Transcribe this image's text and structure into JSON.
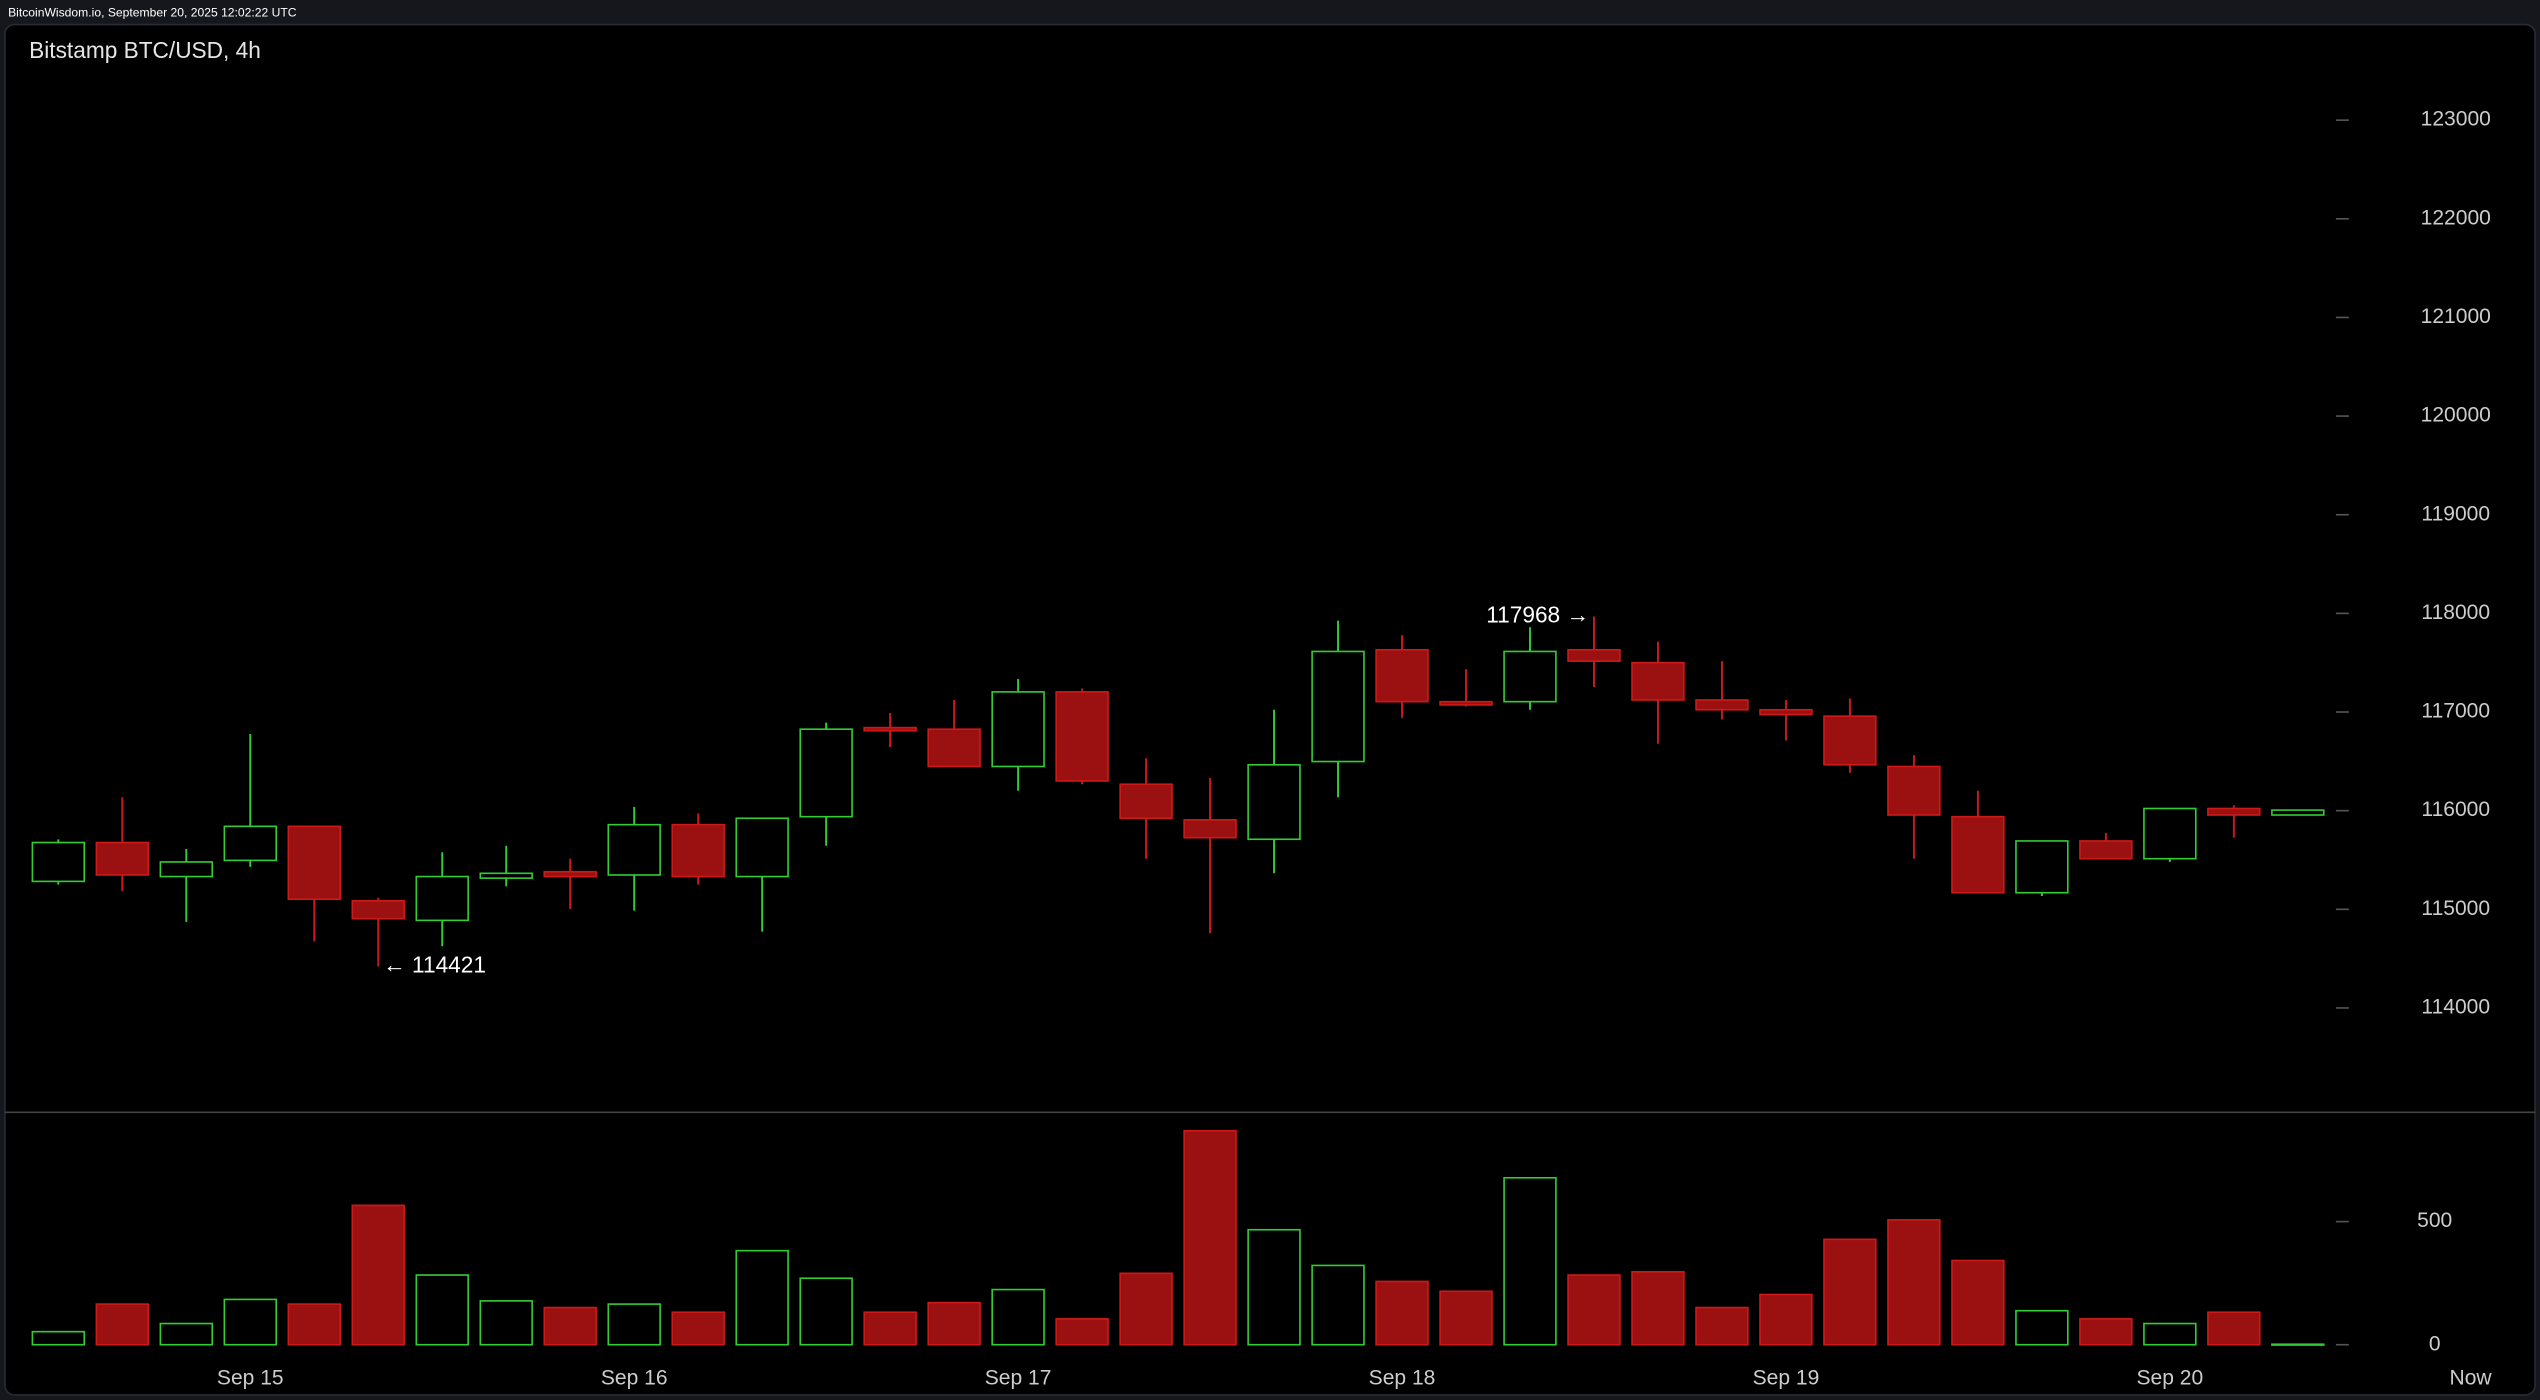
{
  "chart_data": {
    "type": "candlestick",
    "source": "BitcoinWisdom.io, September 20, 2025 12:02:22 UTC",
    "title": "Bitstamp BTC/USD, 4h",
    "categories": [
      null,
      null,
      null,
      "Sep 15",
      null,
      null,
      null,
      null,
      null,
      "Sep 16",
      null,
      null,
      null,
      null,
      null,
      "Sep 17",
      null,
      null,
      null,
      null,
      null,
      "Sep 18",
      null,
      null,
      null,
      null,
      null,
      "Sep 19",
      null,
      null,
      null,
      null,
      null,
      "Sep 20",
      null,
      null
    ],
    "open": [
      115283,
      115677,
      115332,
      115496,
      115841,
      115086,
      114888,
      115316,
      115381,
      115348,
      115858,
      115332,
      115939,
      116842,
      116826,
      116448,
      117204,
      116268,
      115907,
      115710,
      116498,
      117631,
      117105,
      117105,
      117631,
      117500,
      117122,
      117023,
      116958,
      116448,
      115939,
      115168,
      115693,
      115513,
      116022,
      115956
    ],
    "high": [
      115709,
      116136,
      115611,
      116777,
      115841,
      115118,
      115578,
      115644,
      115513,
      116038,
      115972,
      115923,
      116892,
      116990,
      117122,
      117335,
      117237,
      116531,
      116333,
      117023,
      117926,
      117778,
      117434,
      117860,
      117968,
      117713,
      117516,
      117122,
      117138,
      116563,
      116202,
      115693,
      115775,
      116022,
      116055,
      116006
    ],
    "low": [
      115250,
      115184,
      114872,
      115430,
      114675,
      114421,
      114626,
      115233,
      115003,
      114987,
      115250,
      114774,
      115644,
      116645,
      116448,
      116202,
      116268,
      115513,
      114757,
      115365,
      116136,
      116941,
      117056,
      117023,
      117253,
      116678,
      116925,
      116711,
      116383,
      115513,
      115168,
      115135,
      115513,
      115480,
      115726,
      115956
    ],
    "close": [
      115677,
      115348,
      115480,
      115841,
      115102,
      114905,
      115332,
      115365,
      115332,
      115858,
      115332,
      115923,
      116826,
      116810,
      116448,
      117204,
      116301,
      115923,
      115726,
      116465,
      117614,
      117105,
      117072,
      117614,
      117516,
      117122,
      117023,
      116974,
      116465,
      115956,
      115168,
      115693,
      115513,
      116022,
      115956,
      116006
    ],
    "volume": [
      53,
      165,
      86,
      184,
      165,
      566,
      283,
      178,
      151,
      165,
      132,
      382,
      270,
      132,
      171,
      224,
      105,
      290,
      869,
      467,
      322,
      257,
      217,
      678,
      283,
      296,
      151,
      204,
      428,
      507,
      342,
      138,
      105,
      86,
      132,
      2
    ],
    "ylim": [
      113000,
      123500
    ],
    "yticks": [
      114000,
      115000,
      116000,
      117000,
      118000,
      119000,
      120000,
      121000,
      122000,
      123000
    ],
    "volume_ylim": [
      0,
      900
    ],
    "volume_yticks": [
      0,
      500
    ],
    "annotations": [
      {
        "value": 117968,
        "label": "117968 →"
      },
      {
        "value": 114421,
        "label": "← 114421"
      }
    ],
    "now_label": "Now",
    "up_color": "#33cc33",
    "down_color": "#cc1a1a",
    "down_fill": "#9b1010"
  }
}
